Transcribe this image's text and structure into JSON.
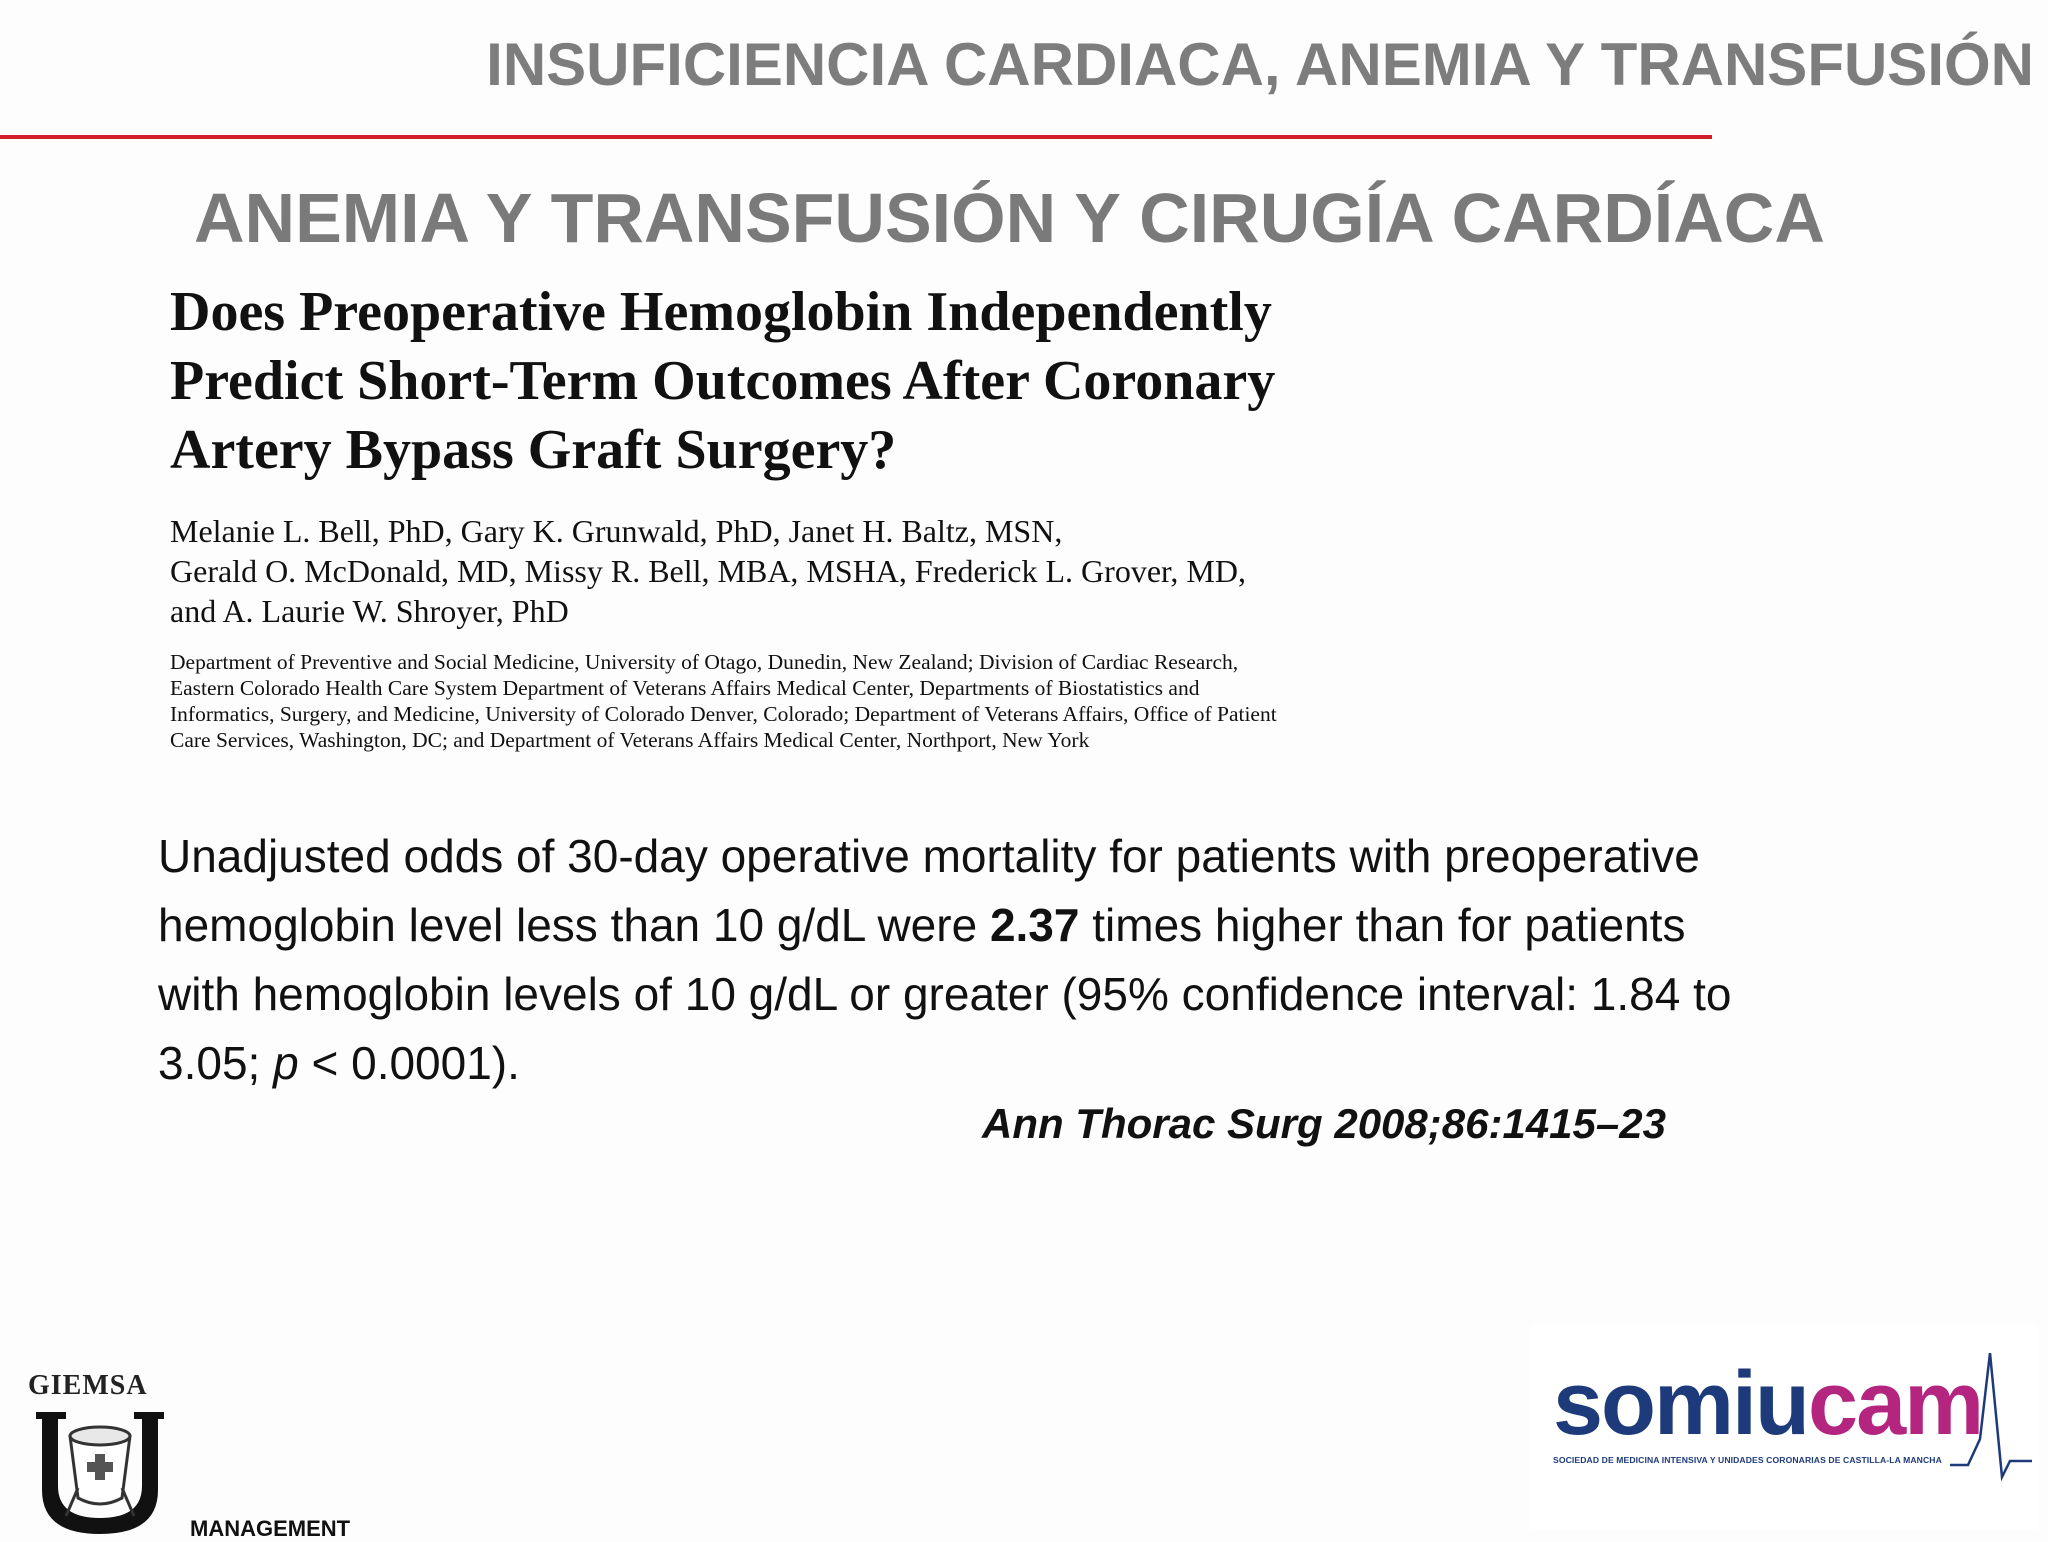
{
  "header": {
    "title": "INSUFICIENCIA CARDIACA, ANEMIA Y TRANSFUSIÓN",
    "rule_color": "#d11f2a"
  },
  "section_title": "ANEMIA Y TRANSFUSIÓN Y CIRUGÍA CARDÍACA",
  "paper": {
    "title_lines": [
      "Does Preoperative Hemoglobin Independently",
      "Predict Short-Term Outcomes After Coronary",
      "Artery Bypass Graft Surgery?"
    ],
    "author_lines": [
      "Melanie L. Bell, PhD, Gary K. Grunwald, PhD, Janet H. Baltz, MSN,",
      "Gerald O. McDonald, MD, Missy R. Bell, MBA, MSHA, Frederick L. Grover, MD,",
      "and A. Laurie W. Shroyer, PhD"
    ],
    "affiliation_lines": [
      "Department of Preventive and Social Medicine, University of Otago, Dunedin, New Zealand; Division of Cardiac Research,",
      "Eastern Colorado Health Care System Department of Veterans Affairs Medical Center, Departments of Biostatistics and",
      "Informatics, Surgery, and Medicine, University of Colorado Denver, Colorado; Department of Veterans Affairs, Office of Patient",
      "Care Services, Washington, DC; and Department of Veterans Affairs Medical Center, Northport, New York"
    ]
  },
  "finding": {
    "line1": "Unadjusted odds of 30-day operative mortality for patients with preoperative",
    "line2_pre": "hemoglobin level less than 10 g/dL were ",
    "line2_bold": "2.37",
    "line2_post": " times higher than for patients",
    "line3": "with hemoglobin levels of 10 g/dL or greater (95% confidence interval: 1.84 to",
    "line4_pre": "3.05; ",
    "line4_italic": "p",
    "line4_post": " < 0.0001)."
  },
  "citation": "Ann Thorac Surg 2008;86:1415–23",
  "logos": {
    "giemsa": {
      "name": "GIEMSA",
      "tagline": "MANAGEMENT",
      "icon": "giemsa-shield-icon"
    },
    "somiucam": {
      "word_part1": "somiu",
      "word_part2": "cam",
      "subtitle": "SOCIEDAD DE MEDICINA INTENSIVA Y UNIDADES CORONARIAS DE CASTILLA-LA MANCHA",
      "icon": "ecg-pulse-icon",
      "color_primary": "#1d3a7a",
      "color_accent": "#b4257f"
    }
  }
}
